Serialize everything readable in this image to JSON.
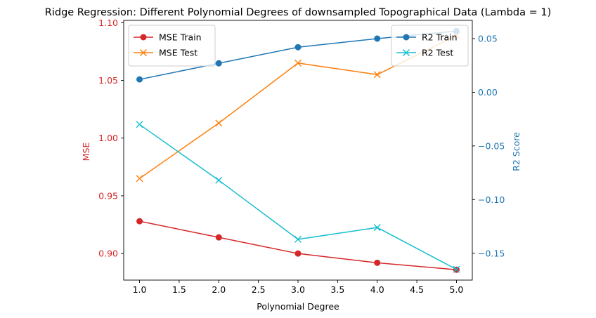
{
  "chart_data": {
    "type": "line",
    "title": "Ridge Regression: Different Polynomial Degrees of downsampled Topographical Data (Lambda = 1)",
    "xlabel": "Polynomial Degree",
    "ylabel_left": "MSE",
    "ylabel_right": "R2 Score",
    "x": [
      1.0,
      2.0,
      3.0,
      4.0,
      5.0
    ],
    "x_ticks": [
      "1.0",
      "1.5",
      "2.0",
      "2.5",
      "3.0",
      "3.5",
      "4.0",
      "4.5",
      "5.0"
    ],
    "x_tick_values": [
      1.0,
      1.5,
      2.0,
      2.5,
      3.0,
      3.5,
      4.0,
      4.5,
      5.0
    ],
    "xlim": [
      0.8,
      5.2
    ],
    "ylim_left": [
      0.877,
      1.102
    ],
    "ylim_right": [
      -0.175,
      0.067
    ],
    "left_ticks": [
      "0.90",
      "0.95",
      "1.00",
      "1.05",
      "1.10"
    ],
    "left_tick_values": [
      0.9,
      0.95,
      1.0,
      1.05,
      1.1
    ],
    "right_ticks": [
      "−0.15",
      "−0.10",
      "−0.05",
      "0.00",
      "0.05"
    ],
    "right_tick_values": [
      -0.15,
      -0.1,
      -0.05,
      0.0,
      0.05
    ],
    "left_axis_color": "#d62728",
    "right_axis_color": "#1f77b4",
    "grid": false,
    "series_left": [
      {
        "name": "MSE Train",
        "values": [
          0.928,
          0.914,
          0.9,
          0.892,
          0.886
        ],
        "color": "#d62728",
        "marker": "circle"
      },
      {
        "name": "MSE Test",
        "values": [
          0.965,
          1.013,
          1.065,
          1.055,
          1.089
        ],
        "color": "#ff7f0e",
        "marker": "x"
      }
    ],
    "series_right": [
      {
        "name": "R2 Train",
        "values": [
          0.012,
          0.027,
          0.042,
          0.05,
          0.057
        ],
        "color": "#1f77b4",
        "marker": "circle"
      },
      {
        "name": "R2 Test",
        "values": [
          -0.03,
          -0.082,
          -0.137,
          -0.126,
          -0.165
        ],
        "color": "#17becf",
        "marker": "x"
      }
    ],
    "legend_left_placement": "top-left",
    "legend_right_placement": "top-right"
  }
}
